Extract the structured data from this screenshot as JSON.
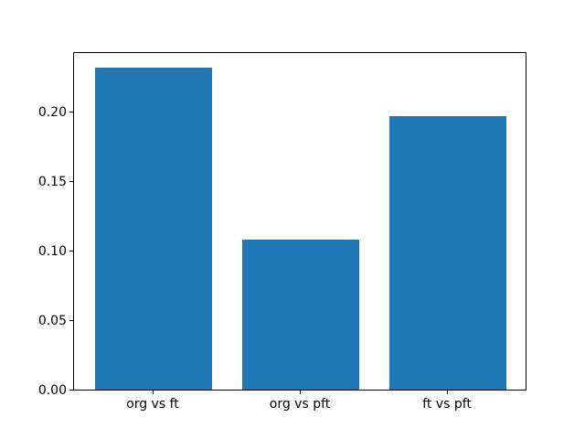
{
  "figure": {
    "background": "#ffffff",
    "title": ""
  },
  "chart_data": {
    "type": "bar",
    "categories": [
      "org vs ft",
      "org vs pft",
      "ft vs pft"
    ],
    "values": [
      0.232,
      0.108,
      0.197
    ],
    "title": "",
    "xlabel": "",
    "ylabel": "",
    "ylim": [
      0,
      0.2436
    ],
    "xlim": [
      -0.54,
      2.54
    ],
    "bar_width": 0.8,
    "bar_color": "#1f77b4",
    "axis_color": "#000000",
    "yticks": [
      {
        "value": 0.0,
        "label": "0.00"
      },
      {
        "value": 0.05,
        "label": "0.05"
      },
      {
        "value": 0.1,
        "label": "0.10"
      },
      {
        "value": 0.15,
        "label": "0.15"
      },
      {
        "value": 0.2,
        "label": "0.20"
      }
    ],
    "grid": false,
    "legend": null
  }
}
